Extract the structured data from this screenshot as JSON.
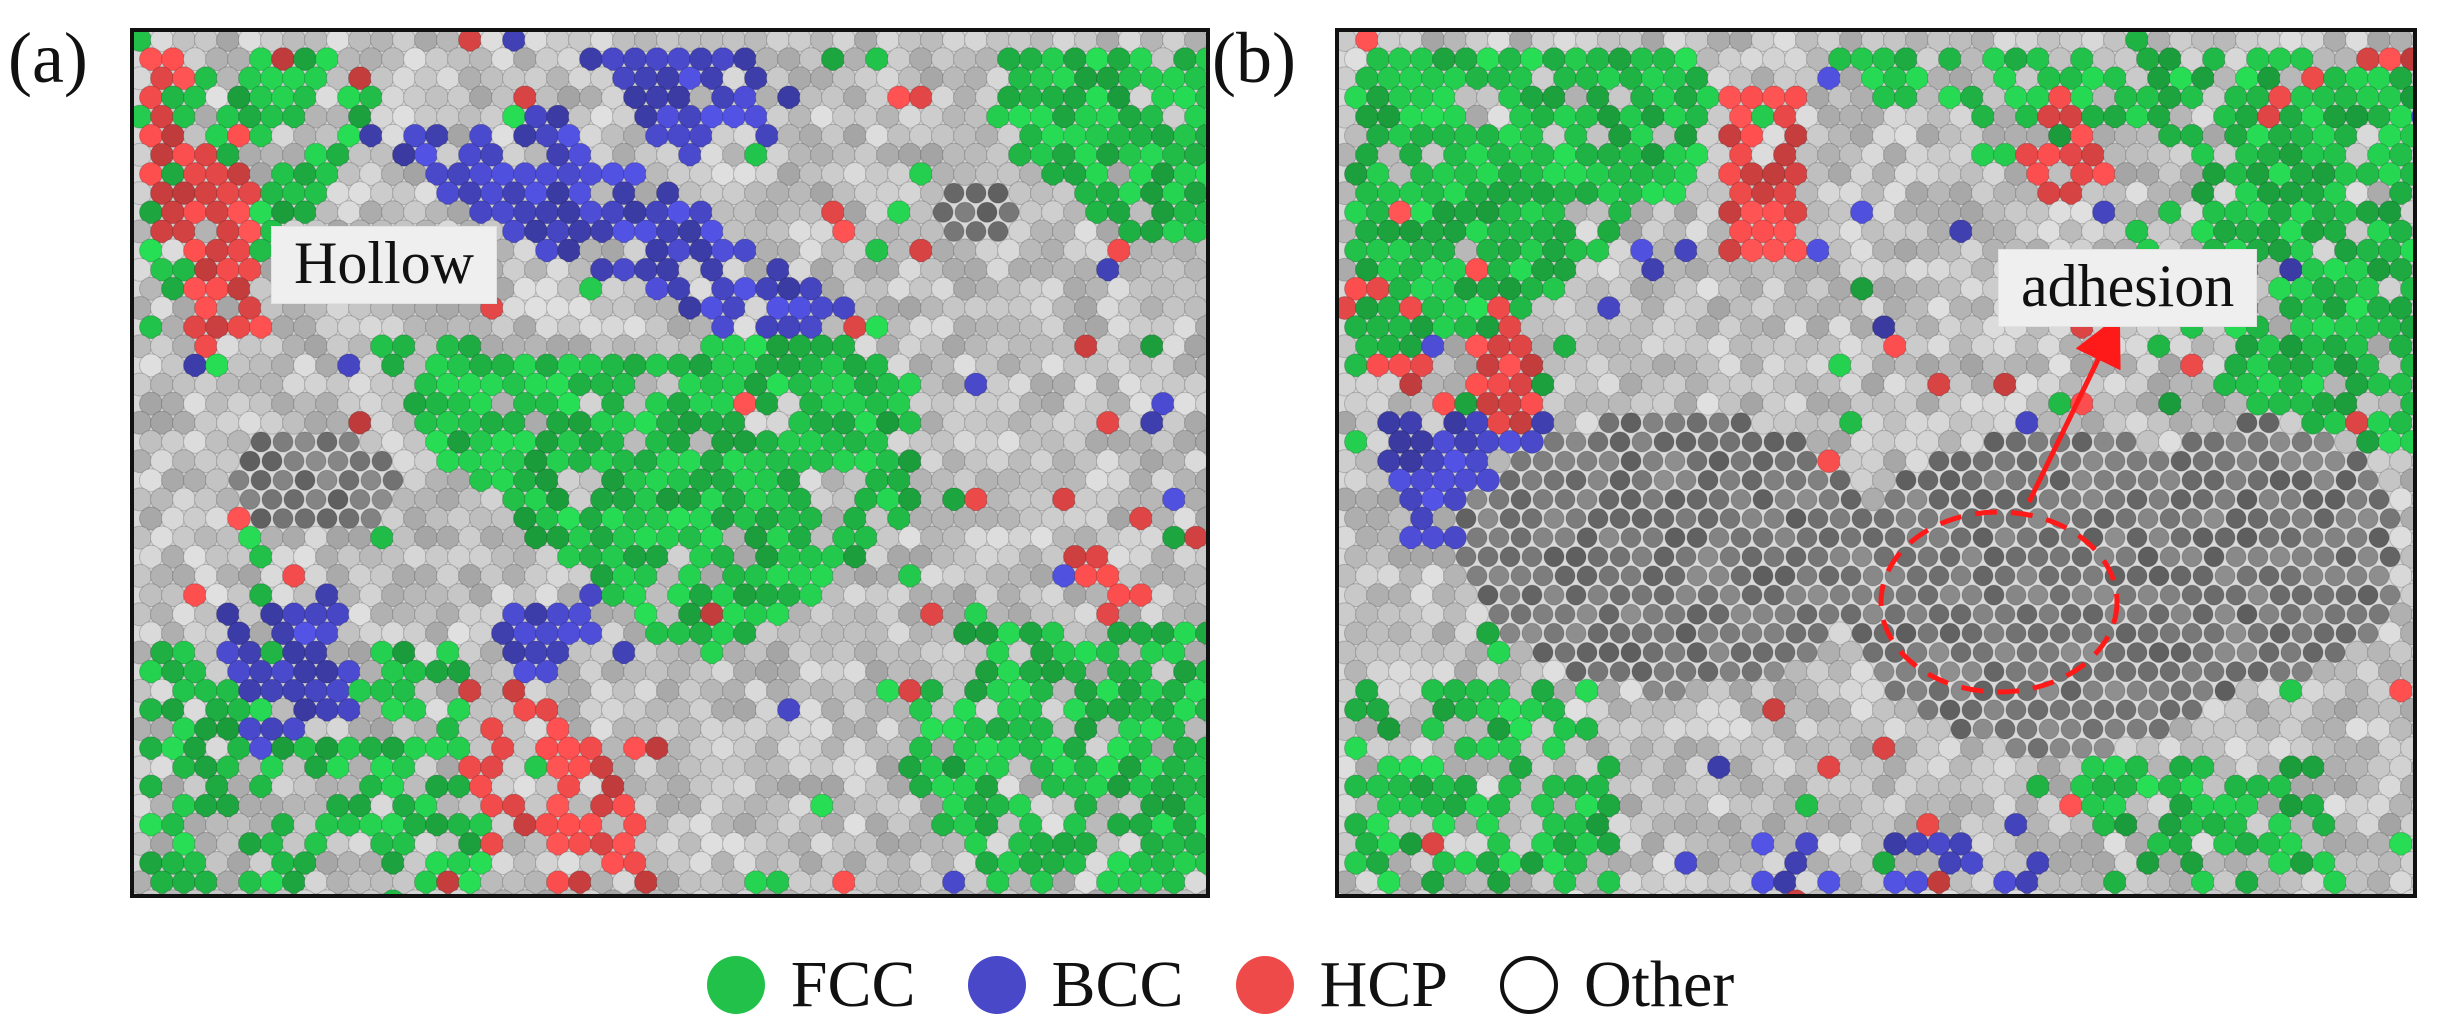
{
  "panels": [
    {
      "label": "(a)",
      "callout": "Hollow"
    },
    {
      "label": "(b)",
      "callout": "adhesion"
    }
  ],
  "legend": [
    {
      "label": "FCC",
      "color": "#22c24a"
    },
    {
      "label": "BCC",
      "color": "#4848c8"
    },
    {
      "label": "HCP",
      "color": "#ee4a4a"
    },
    {
      "label": "Other",
      "color": "#ffffff"
    }
  ],
  "colors": {
    "fcc": "#22c24a",
    "bcc": "#4848c8",
    "hcp": "#ee4a4a",
    "other": "#cfcfcf",
    "void": "#6e6e6e",
    "annotation": "#ff1a1a"
  }
}
